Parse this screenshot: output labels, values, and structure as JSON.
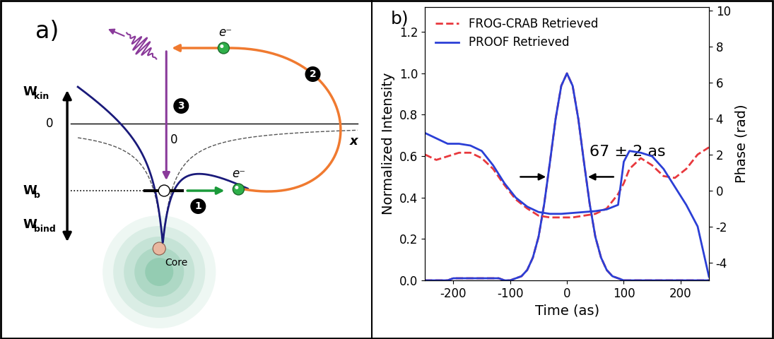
{
  "diagram": {
    "label": "a)",
    "energy_axis": {
      "top": {
        "main": "W",
        "sub": "kin"
      },
      "level": {
        "main": "W",
        "sub": "b"
      },
      "bottom": {
        "main": "W",
        "sub": "bind"
      },
      "zero": "0"
    },
    "position_axis": {
      "label": "x",
      "origin": "0"
    },
    "electrons": [
      "e⁻",
      "e⁻"
    ],
    "steps": [
      "1",
      "2",
      "3"
    ],
    "core": "Core"
  },
  "chart_data": {
    "type": "line",
    "panel_label": "b)",
    "xlabel": "Time (as)",
    "ylabel": "Normalized Intensity",
    "y2label": "Phase (rad)",
    "annotation": "67 ± 2 as",
    "fwhm": 67,
    "xlim": [
      -250,
      250
    ],
    "xticks": [
      -200,
      -100,
      0,
      100,
      200
    ],
    "ylim": [
      0,
      1.32
    ],
    "yticks": [
      {
        "value": 0,
        "label": "0.0"
      },
      {
        "value": 0.2,
        "label": "0.2"
      },
      {
        "value": 0.4,
        "label": "0.4"
      },
      {
        "value": 0.6,
        "label": "0.6"
      },
      {
        "value": 0.8,
        "label": "0.8"
      },
      {
        "value": 1.0,
        "label": "1.0"
      },
      {
        "value": 1.2,
        "label": "1.2"
      }
    ],
    "y2lim": [
      -5,
      10.2
    ],
    "y2ticks": [
      -4,
      -2,
      0,
      2,
      4,
      6,
      8,
      10
    ],
    "grid": false,
    "legend": "upper left",
    "series": [
      {
        "name": "FROG-CRAB Retrieved",
        "color": "#e8383d",
        "line_style": "dashed",
        "x": [
          -250,
          -240,
          -230,
          -220,
          -210,
          -200,
          -190,
          -180,
          -170,
          -160,
          -150,
          -140,
          -130,
          -120,
          -110,
          -100,
          -90,
          -80,
          -70,
          -60,
          -50,
          -40,
          -30,
          -20,
          -10,
          0,
          10,
          20,
          30,
          40,
          50,
          60,
          70,
          80,
          90,
          100,
          110,
          120,
          130,
          140,
          150,
          160,
          170,
          180,
          190,
          200,
          210,
          220,
          230,
          240,
          250
        ],
        "values": [
          0,
          0,
          0,
          0,
          0,
          0.01,
          0.01,
          0.01,
          0.01,
          0.01,
          0.01,
          0.01,
          0.01,
          0.01,
          0,
          0,
          0.01,
          0.02,
          0.05,
          0.11,
          0.21,
          0.37,
          0.57,
          0.78,
          0.94,
          1.0,
          0.94,
          0.78,
          0.57,
          0.37,
          0.21,
          0.11,
          0.05,
          0.02,
          0.01,
          0,
          0,
          0,
          0,
          0,
          0,
          0,
          0,
          0,
          0,
          0,
          0,
          0,
          0,
          0,
          0
        ]
      },
      {
        "name": "PROOF Retrieved",
        "color": "#2b3fd6",
        "line_style": "solid",
        "x": [
          -250,
          -240,
          -230,
          -220,
          -210,
          -200,
          -190,
          -180,
          -170,
          -160,
          -150,
          -140,
          -130,
          -120,
          -110,
          -100,
          -90,
          -80,
          -70,
          -60,
          -50,
          -40,
          -30,
          -20,
          -10,
          0,
          10,
          20,
          30,
          40,
          50,
          60,
          70,
          80,
          90,
          100,
          110,
          120,
          130,
          140,
          150,
          160,
          170,
          180,
          190,
          200,
          210,
          220,
          230,
          240,
          250
        ],
        "values": [
          0,
          0,
          0,
          0,
          0,
          0.01,
          0.01,
          0.01,
          0.01,
          0.01,
          0.01,
          0.01,
          0.01,
          0.01,
          0,
          0,
          0.01,
          0.02,
          0.05,
          0.11,
          0.21,
          0.37,
          0.57,
          0.78,
          0.94,
          1.0,
          0.94,
          0.78,
          0.57,
          0.37,
          0.21,
          0.11,
          0.05,
          0.02,
          0.01,
          0,
          0,
          0,
          0,
          0,
          0,
          0,
          0,
          0,
          0,
          0,
          0,
          0,
          0,
          0,
          0
        ]
      },
      {
        "name": "FROG-CRAB Retrieved",
        "color": "#e8383d",
        "line_style": "dashed",
        "axis": "y2",
        "x": [
          -250,
          -230,
          -210,
          -190,
          -170,
          -150,
          -130,
          -110,
          -90,
          -70,
          -50,
          -30,
          -10,
          10,
          30,
          50,
          70,
          90,
          100,
          110,
          130,
          150,
          170,
          190,
          210,
          230,
          250
        ],
        "values": [
          2.0,
          1.7,
          1.9,
          2.1,
          2.1,
          1.8,
          1.2,
          0.3,
          -0.5,
          -1.0,
          -1.4,
          -1.5,
          -1.5,
          -1.5,
          -1.4,
          -1.3,
          -1.0,
          -0.2,
          0.4,
          1.2,
          1.8,
          1.4,
          0.8,
          0.7,
          1.2,
          2.0,
          2.4
        ]
      },
      {
        "name": "PROOF Retrieved",
        "color": "#2b3fd6",
        "line_style": "solid",
        "axis": "y2",
        "x": [
          -250,
          -230,
          -210,
          -190,
          -170,
          -150,
          -130,
          -110,
          -90,
          -70,
          -50,
          -30,
          -10,
          10,
          30,
          50,
          70,
          90,
          100,
          110,
          130,
          150,
          170,
          190,
          210,
          230,
          250
        ],
        "values": [
          3.2,
          2.9,
          2.6,
          2.6,
          2.5,
          2.2,
          1.4,
          0.4,
          -0.4,
          -0.9,
          -1.2,
          -1.3,
          -1.3,
          -1.25,
          -1.2,
          -1.15,
          -1.05,
          -0.8,
          1.6,
          2.2,
          2.1,
          1.9,
          1.2,
          0.2,
          -0.8,
          -2.0,
          -4.8
        ]
      }
    ]
  }
}
